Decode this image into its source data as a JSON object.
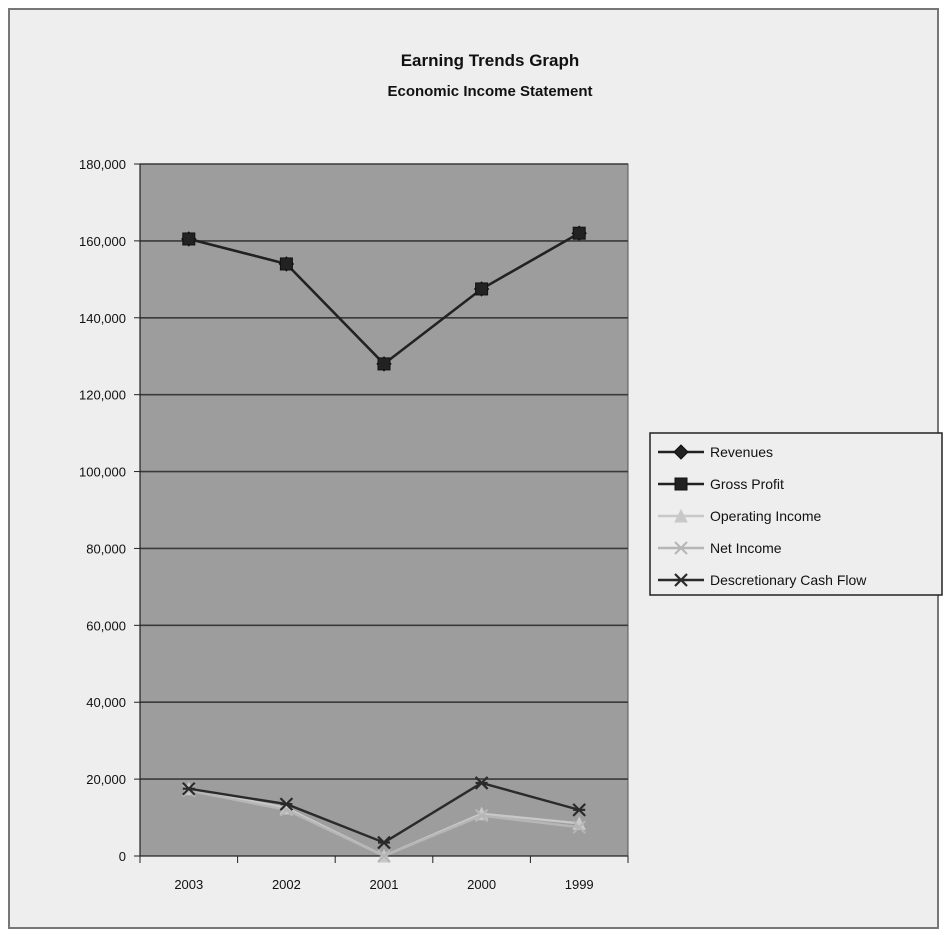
{
  "colors": {
    "plot_background": "#9d9d9d",
    "gridline": "#3a3a3a",
    "revenues": "#222222",
    "gross_profit": "#222222",
    "operating_income": "#c8c8c8",
    "net_income": "#b6b6b6",
    "discretionary_cash_flow": "#2a2a2a"
  },
  "chart_data": {
    "type": "line",
    "title": "Earning Trends Graph",
    "subtitle": "Economic Income Statement",
    "categories": [
      "2003",
      "2002",
      "2001",
      "2000",
      "1999"
    ],
    "ylim": [
      0,
      180000
    ],
    "yticks": [
      0,
      20000,
      40000,
      60000,
      80000,
      100000,
      120000,
      140000,
      160000,
      180000
    ],
    "ytick_labels": [
      "0",
      "20,000",
      "40,000",
      "60,000",
      "80,000",
      "100,000",
      "120,000",
      "140,000",
      "160,000",
      "180,000"
    ],
    "grid": true,
    "legend_position": "right",
    "series": [
      {
        "name": "Revenues",
        "marker": "diamond",
        "color": "#222222",
        "values": [
          160500,
          154000,
          128000,
          147500,
          162000
        ]
      },
      {
        "name": "Gross Profit",
        "marker": "square",
        "color": "#222222",
        "values": [
          160500,
          154000,
          128000,
          147500,
          162000
        ]
      },
      {
        "name": "Operating Income",
        "marker": "triangle",
        "color": "#c8c8c8",
        "values": [
          17500,
          12500,
          0,
          11000,
          8500
        ]
      },
      {
        "name": "Net Income",
        "marker": "x",
        "color": "#b6b6b6",
        "values": [
          17000,
          12000,
          0,
          10500,
          7500
        ]
      },
      {
        "name": "Descretionary Cash Flow",
        "marker": "star",
        "color": "#2a2a2a",
        "values": [
          17500,
          13500,
          3500,
          19000,
          12000
        ]
      }
    ]
  }
}
